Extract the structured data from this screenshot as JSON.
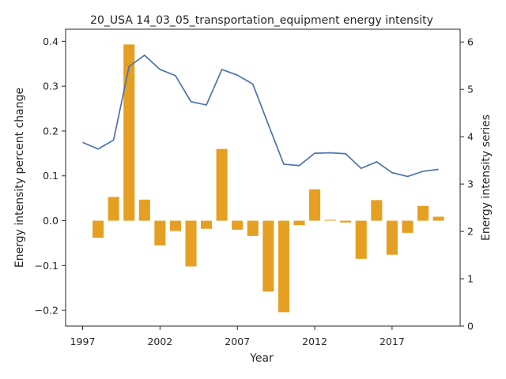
{
  "chart_data": {
    "type": "bar+line",
    "title": "20_USA 14_03_05_transportation_equipment energy intensity",
    "xlabel": "Year",
    "ylabel_left": "Energy intensity percent change",
    "ylabel_right": "Energy intensity series",
    "x": [
      1997,
      1998,
      1999,
      2000,
      2001,
      2002,
      2003,
      2004,
      2005,
      2006,
      2007,
      2008,
      2009,
      2010,
      2011,
      2012,
      2013,
      2014,
      2015,
      2016,
      2017,
      2018,
      2019,
      2020
    ],
    "x_ticks": [
      1997,
      2002,
      2007,
      2012,
      2017
    ],
    "x_tick_labels": [
      "1997",
      "2002",
      "2007",
      "2012",
      "2017"
    ],
    "xlim": [
      1995.9,
      2021.4
    ],
    "ylim_left": [
      -0.235,
      0.427
    ],
    "yticks_left": [
      -0.2,
      -0.1,
      0.0,
      0.1,
      0.2,
      0.3,
      0.4
    ],
    "ytick_labels_left": [
      "−0.2",
      "−0.1",
      "0.0",
      "0.1",
      "0.2",
      "0.3",
      "0.4"
    ],
    "ylim_right": [
      0,
      6.27
    ],
    "yticks_right": [
      0,
      1,
      2,
      3,
      4,
      5,
      6
    ],
    "ytick_labels_right": [
      "0",
      "1",
      "2",
      "3",
      "4",
      "5",
      "6"
    ],
    "grid": false,
    "legend": "none",
    "series": [
      {
        "kind": "bar",
        "axis": "left",
        "color": "#e5a023",
        "values": [
          null,
          -0.038,
          0.053,
          0.393,
          0.047,
          -0.055,
          -0.023,
          -0.102,
          -0.018,
          0.16,
          -0.02,
          -0.034,
          -0.158,
          -0.204,
          -0.01,
          0.07,
          0.002,
          -0.004,
          -0.085,
          0.046,
          -0.076,
          -0.027,
          0.033,
          0.009
        ]
      },
      {
        "kind": "line",
        "axis": "right",
        "color": "#4c72b0",
        "values": [
          3.88,
          3.74,
          3.93,
          5.48,
          5.72,
          5.42,
          5.29,
          4.74,
          4.67,
          5.42,
          5.3,
          5.11,
          4.26,
          3.42,
          3.39,
          3.65,
          3.66,
          3.64,
          3.33,
          3.47,
          3.24,
          3.16,
          3.27,
          3.31
        ]
      }
    ]
  }
}
